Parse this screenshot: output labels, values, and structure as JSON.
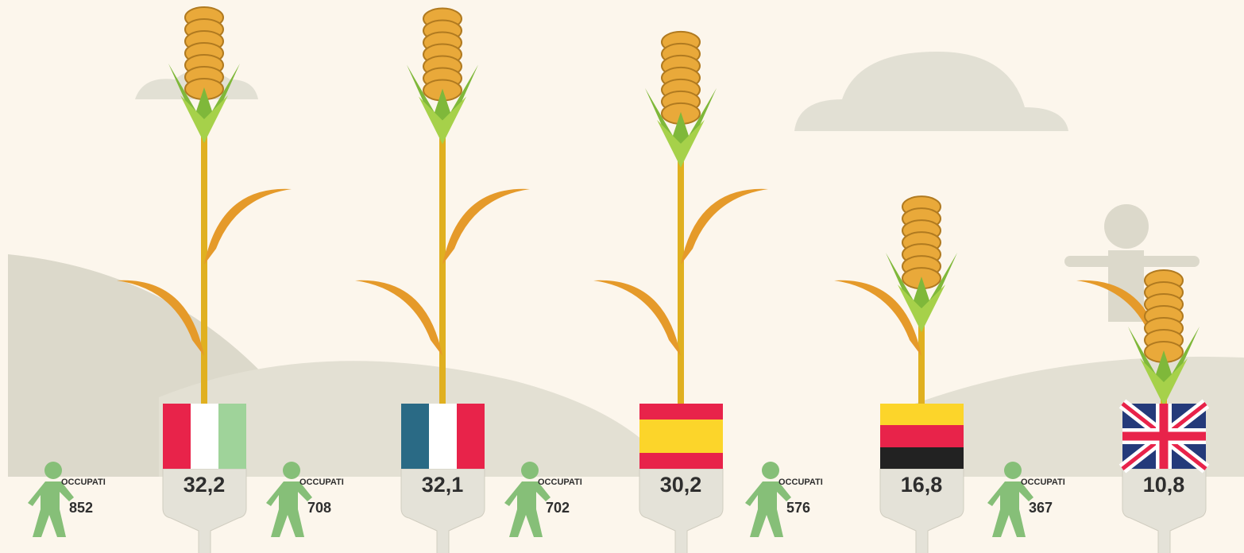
{
  "chart_data": {
    "type": "corn",
    "values": [
      32.2,
      32.1,
      30.2,
      16.8,
      10.8
    ],
    "value_labels": [
      "32,2",
      "32,1",
      "30,2",
      "16,8",
      "10,8"
    ],
    "occupati_label": "OCCUPATI",
    "occupati": [
      852,
      708,
      702,
      576,
      367
    ]
  }
}
